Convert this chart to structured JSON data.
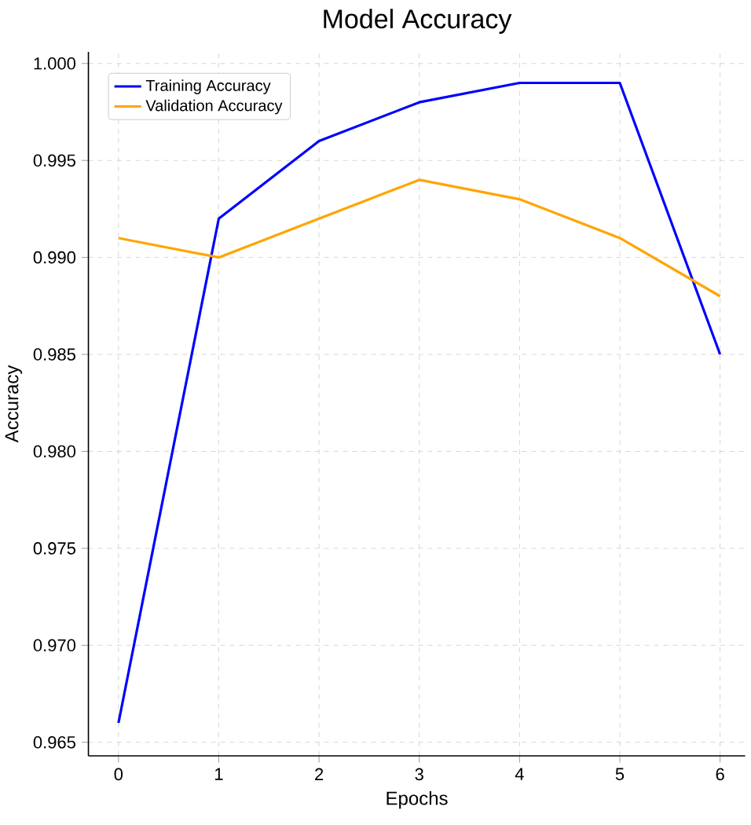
{
  "chart_data": {
    "type": "line",
    "title": "Model Accuracy",
    "xlabel": "Epochs",
    "ylabel": "Accuracy",
    "x": [
      0,
      1,
      2,
      3,
      4,
      5,
      6
    ],
    "series": [
      {
        "name": "Training Accuracy",
        "color": "#0000ff",
        "values": [
          0.966,
          0.992,
          0.996,
          0.998,
          0.999,
          0.999,
          0.985
        ]
      },
      {
        "name": "Validation Accuracy",
        "color": "#ffa500",
        "values": [
          0.991,
          0.99,
          0.992,
          0.994,
          0.993,
          0.991,
          0.988
        ]
      }
    ],
    "xlim": [
      -0.3,
      6.25
    ],
    "ylim": [
      0.9643,
      1.0006
    ],
    "xticks": [
      0,
      1,
      2,
      3,
      4,
      5,
      6
    ],
    "yticks": [
      {
        "value": 0.965,
        "label": "0.965"
      },
      {
        "value": 0.97,
        "label": "0.970"
      },
      {
        "value": 0.975,
        "label": "0.975"
      },
      {
        "value": 0.98,
        "label": "0.980"
      },
      {
        "value": 0.985,
        "label": "0.985"
      },
      {
        "value": 0.99,
        "label": "0.990"
      },
      {
        "value": 0.995,
        "label": "0.995"
      },
      {
        "value": 1.0,
        "label": "1.000"
      }
    ],
    "grid": true,
    "legend": "top left"
  }
}
